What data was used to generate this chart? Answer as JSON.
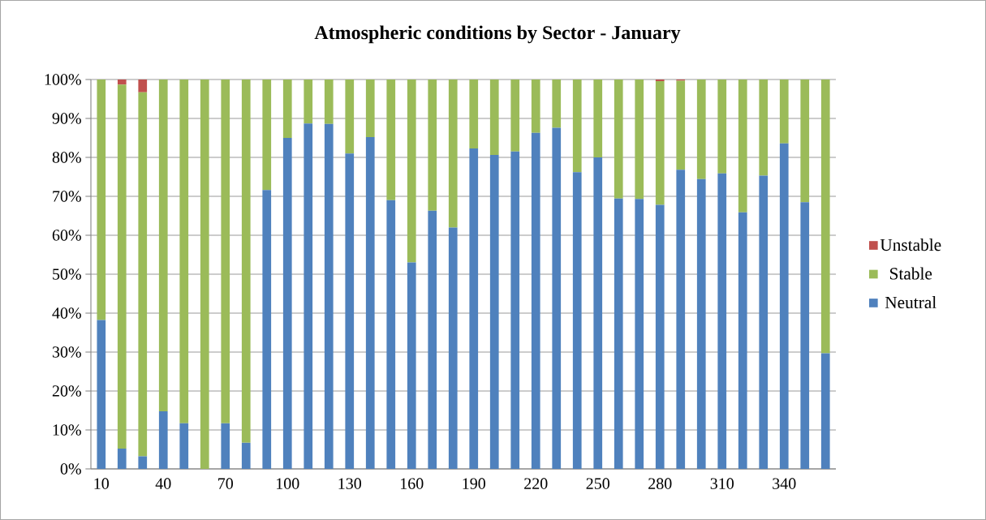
{
  "chart_data": {
    "type": "bar",
    "title": "Atmospheric conditions by Sector - January",
    "stacked": true,
    "grid": "y",
    "legend": "right",
    "categories": [
      "10",
      null,
      null,
      "40",
      null,
      null,
      "70",
      null,
      null,
      "100",
      null,
      null,
      "130",
      null,
      null,
      "160",
      null,
      null,
      "190",
      null,
      null,
      "220",
      null,
      null,
      "250",
      null,
      null,
      "280",
      null,
      null,
      "310",
      null,
      null,
      "340",
      null,
      null
    ],
    "ylim": [
      0,
      100
    ],
    "yticks": [
      {
        "value": 0,
        "label": "0%"
      },
      {
        "value": 10,
        "label": "10%"
      },
      {
        "value": 20,
        "label": "20%"
      },
      {
        "value": 30,
        "label": "30%"
      },
      {
        "value": 40,
        "label": "40%"
      },
      {
        "value": 50,
        "label": "50%"
      },
      {
        "value": 60,
        "label": "60%"
      },
      {
        "value": 70,
        "label": "70%"
      },
      {
        "value": 80,
        "label": "80%"
      },
      {
        "value": 90,
        "label": "90%"
      },
      {
        "value": 100,
        "label": "100%"
      }
    ],
    "series": [
      {
        "name": "Neutral",
        "color": "#4f81bd",
        "values": [
          38.2,
          5.2,
          3.2,
          14.8,
          11.7,
          0,
          11.7,
          6.7,
          71.6,
          85,
          88.7,
          88.6,
          81,
          85.2,
          69,
          53,
          66.3,
          62,
          82.3,
          80.6,
          81.5,
          86.3,
          87.6,
          76.2,
          80,
          69.4,
          69.3,
          67.8,
          76.8,
          74.4,
          75.9,
          65.9,
          75.3,
          83.6,
          68.5,
          29.7
        ]
      },
      {
        "name": "Stable",
        "color": "#9bbb59",
        "values": [
          61.8,
          93.5,
          93.5,
          85.2,
          88.3,
          100,
          88.3,
          93.3,
          28.4,
          15,
          11.3,
          11.4,
          19,
          14.8,
          31,
          47,
          33.7,
          38,
          17.7,
          19.4,
          18.5,
          13.7,
          12.4,
          23.8,
          20,
          30.6,
          30.7,
          31.8,
          22.9,
          25.6,
          24.1,
          34.1,
          24.7,
          16.4,
          31.5,
          70.3
        ]
      },
      {
        "name": "Unstable",
        "color": "#c0504d",
        "values": [
          0,
          1.3,
          3.3,
          0,
          0,
          0,
          0,
          0,
          0,
          0,
          0,
          0,
          0,
          0,
          0,
          0,
          0,
          0,
          0,
          0,
          0,
          0,
          0,
          0,
          0,
          0,
          0,
          0.4,
          0.3,
          0,
          0,
          0,
          0,
          0,
          0,
          0
        ]
      }
    ]
  }
}
